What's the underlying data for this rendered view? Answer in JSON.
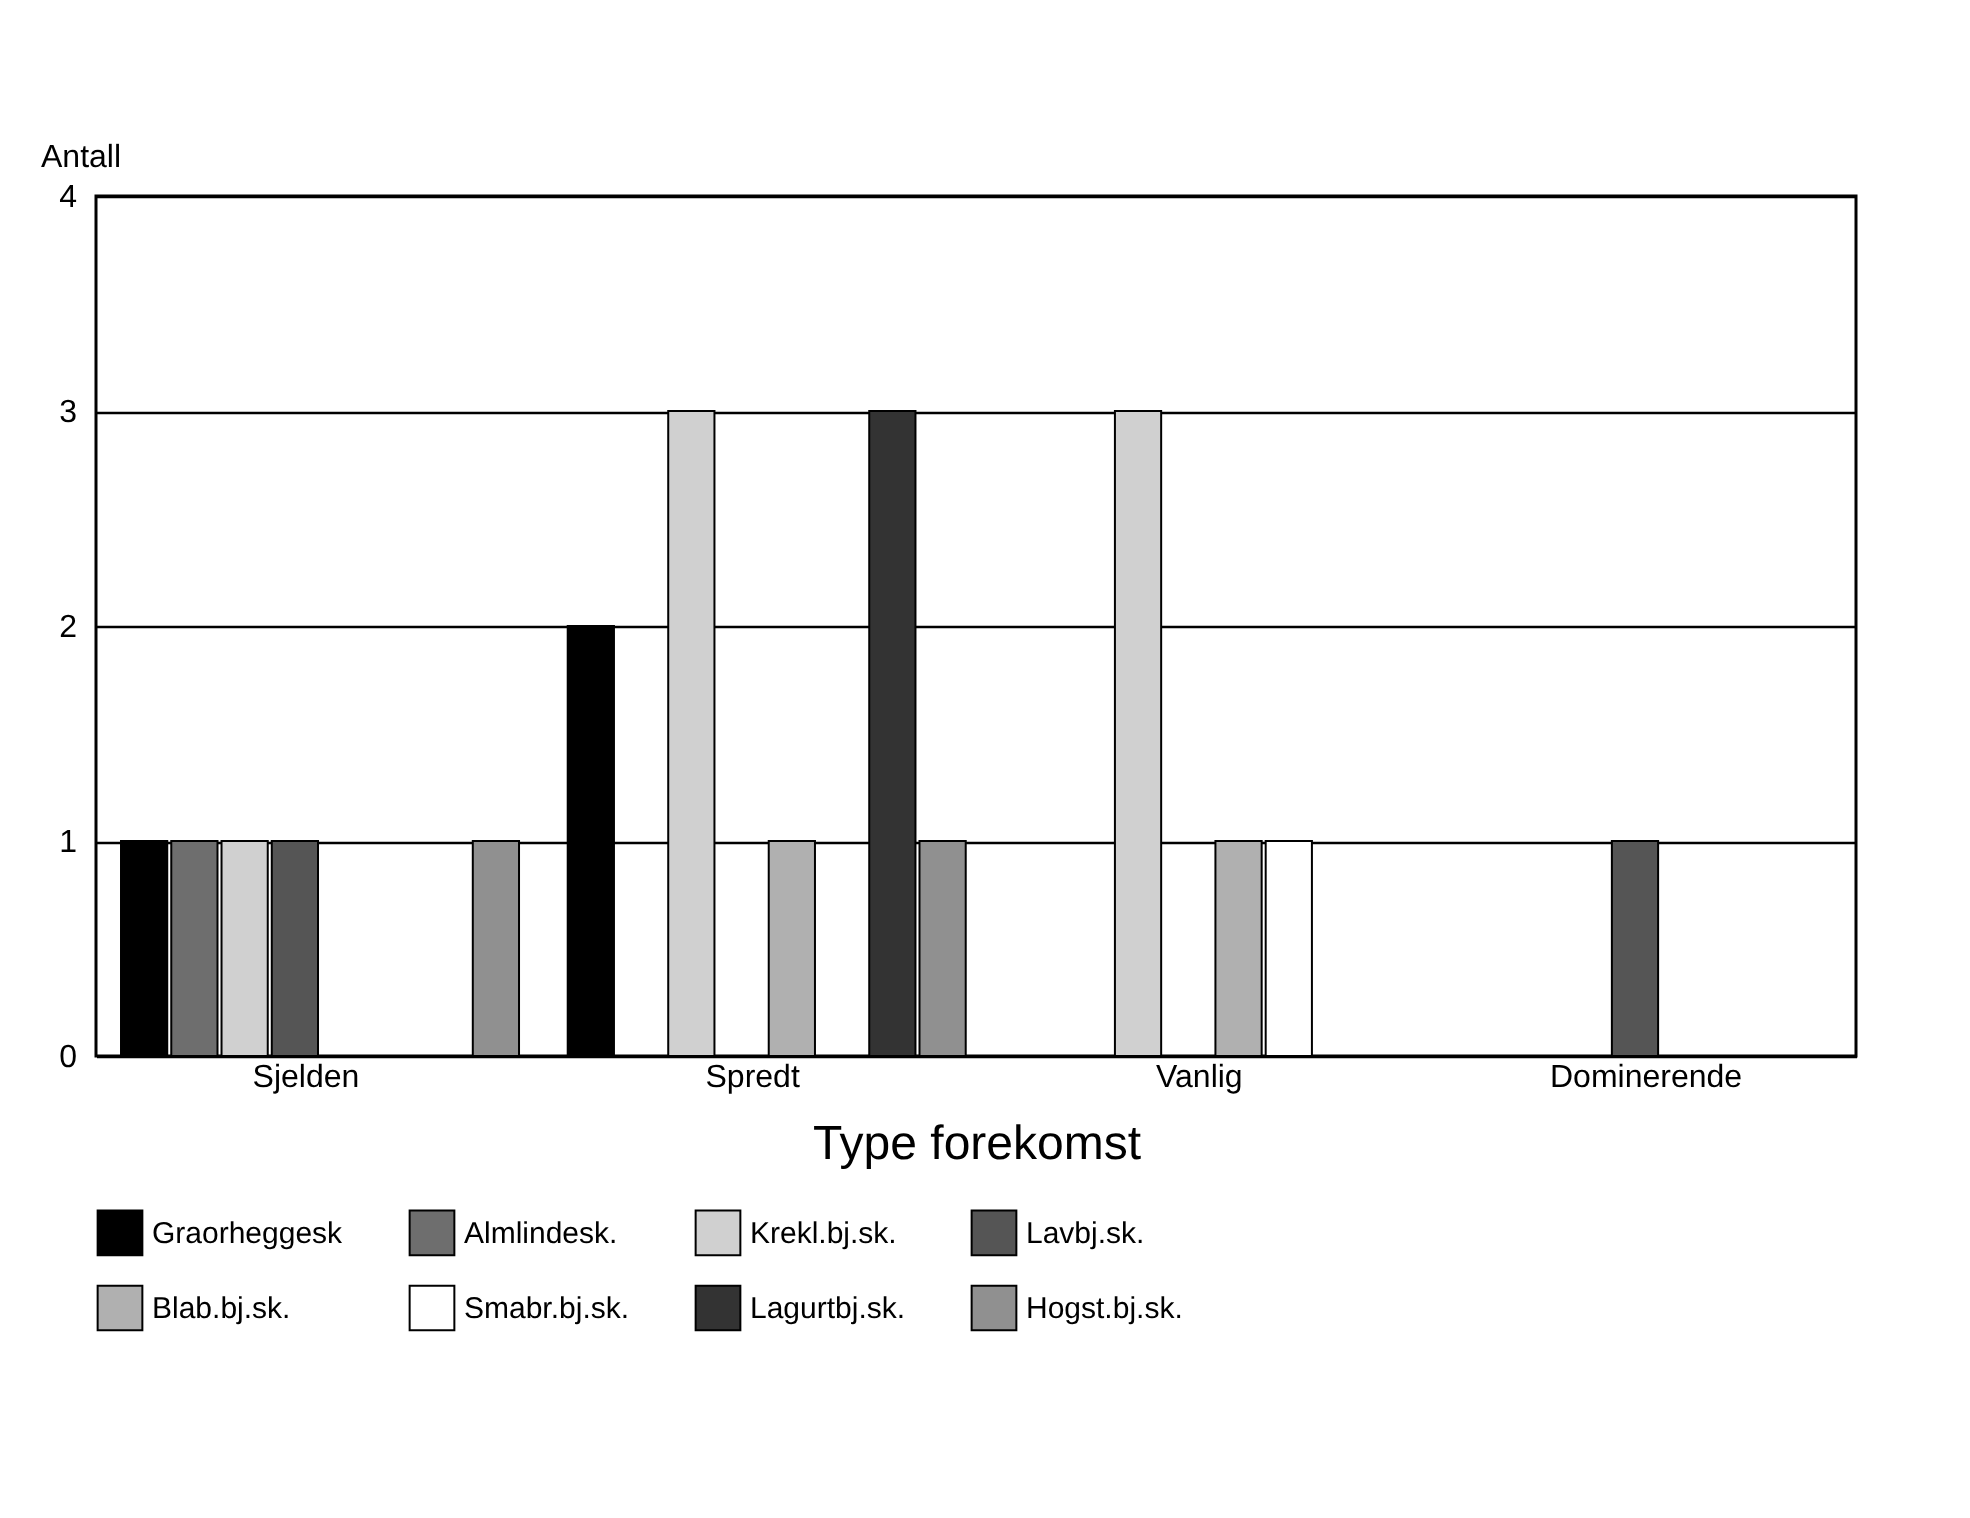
{
  "chart_data": {
    "type": "bar",
    "xlabel": "Type forekomst",
    "ylabel": "Antall",
    "categories": [
      "Sjelden",
      "Spredt",
      "Vanlig",
      "Dominerende"
    ],
    "series": [
      {
        "name": "Graorheggesk",
        "color": "#000000",
        "values": [
          1,
          2,
          0,
          0
        ]
      },
      {
        "name": "Almlindesk.",
        "color": "#6e6e6e",
        "values": [
          1,
          0,
          0,
          0
        ]
      },
      {
        "name": "Krekl.bj.sk.",
        "color": "#d0d0d0",
        "values": [
          1,
          3,
          3,
          0
        ]
      },
      {
        "name": "Lavbj.sk.",
        "color": "#555555",
        "values": [
          1,
          0,
          0,
          1
        ]
      },
      {
        "name": "Blab.bj.sk.",
        "color": "#b0b0b0",
        "values": [
          0,
          1,
          1,
          0
        ]
      },
      {
        "name": "Smabr.bj.sk.",
        "color": "#ffffff",
        "values": [
          0,
          0,
          1,
          0
        ]
      },
      {
        "name": "Lagurtbj.sk.",
        "color": "#333333",
        "values": [
          0,
          3,
          0,
          0
        ]
      },
      {
        "name": "Hogst.bj.sk.",
        "color": "#909090",
        "values": [
          1,
          1,
          0,
          0
        ]
      }
    ],
    "ylim": [
      0,
      4
    ],
    "yticks": [
      0,
      1,
      2,
      3,
      4
    ],
    "grid": "y",
    "legend": "bottom"
  }
}
